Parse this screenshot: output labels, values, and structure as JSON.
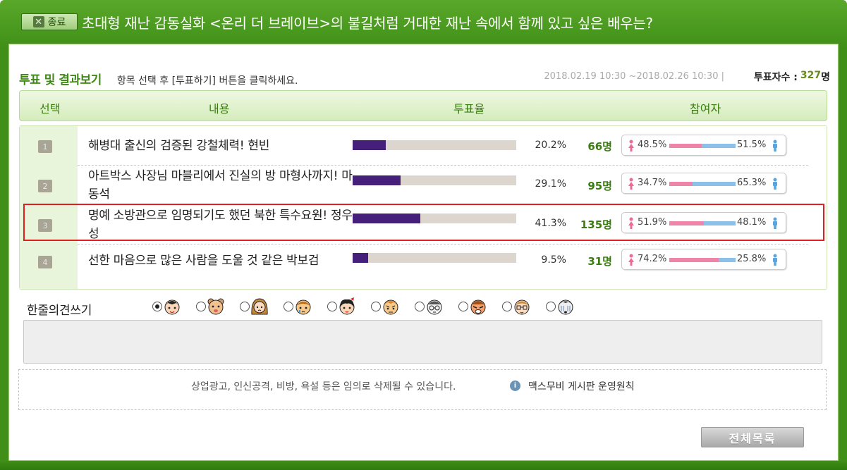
{
  "title_bar": {
    "close_label": "종료",
    "title": "초대형 재난 감동실화 <온리 더 브레이브>의 불길처럼 거대한 재난 속에서 함께 있고 싶은 배우는?"
  },
  "vote": {
    "heading": "투표 및 결과보기",
    "guide": "항목 선택 후 [투표하기] 버튼을 클릭하세요.",
    "period": "2018.02.19 10:30 ~2018.02.26 10:30 |",
    "count_label": "투표자수 :",
    "count_value": "327",
    "count_unit": "명"
  },
  "columns": {
    "select": "선택",
    "content": "내용",
    "rate": "투표율",
    "participants": "참여자"
  },
  "rows": [
    {
      "num": "1",
      "text": "해병대 출신의 검증된 강철체력! 현빈",
      "rate": 0.202,
      "pct": "20.2%",
      "count": "66명",
      "female_pct": "48.5%",
      "male_pct": "51.5%",
      "female_frac": 0.485
    },
    {
      "num": "2",
      "text": "아트박스 사장님 마블리에서 진실의 방 마형사까지! 마동석",
      "rate": 0.291,
      "pct": "29.1%",
      "count": "95명",
      "female_pct": "34.7%",
      "male_pct": "65.3%",
      "female_frac": 0.347
    },
    {
      "num": "3",
      "text": "명예 소방관으로 임명되기도 했던 북한 특수요원! 정우성",
      "rate": 0.413,
      "pct": "41.3%",
      "count": "135명",
      "female_pct": "51.9%",
      "male_pct": "48.1%",
      "female_frac": 0.519
    },
    {
      "num": "4",
      "text": "선한 마음으로 많은 사람을 도울 것 같은 박보검",
      "rate": 0.095,
      "pct": "9.5%",
      "count": "31명",
      "female_pct": "74.2%",
      "male_pct": "25.8%",
      "female_frac": 0.742
    }
  ],
  "opinion": {
    "label": "한줄의견쓰기",
    "selected_emote": 0
  },
  "notice": {
    "text": "상업광고, 인신공격, 비방, 욕설 등은 임의로 삭제될 수 있습니다.",
    "link": "맥스무비 게시판 운영원칙"
  },
  "buttons": {
    "list": "전체목록"
  },
  "colors": {
    "brand_green": "#3f8f18",
    "vote_bar": "#44207a",
    "female": "#ee85a8",
    "male": "#8cc0e8"
  }
}
